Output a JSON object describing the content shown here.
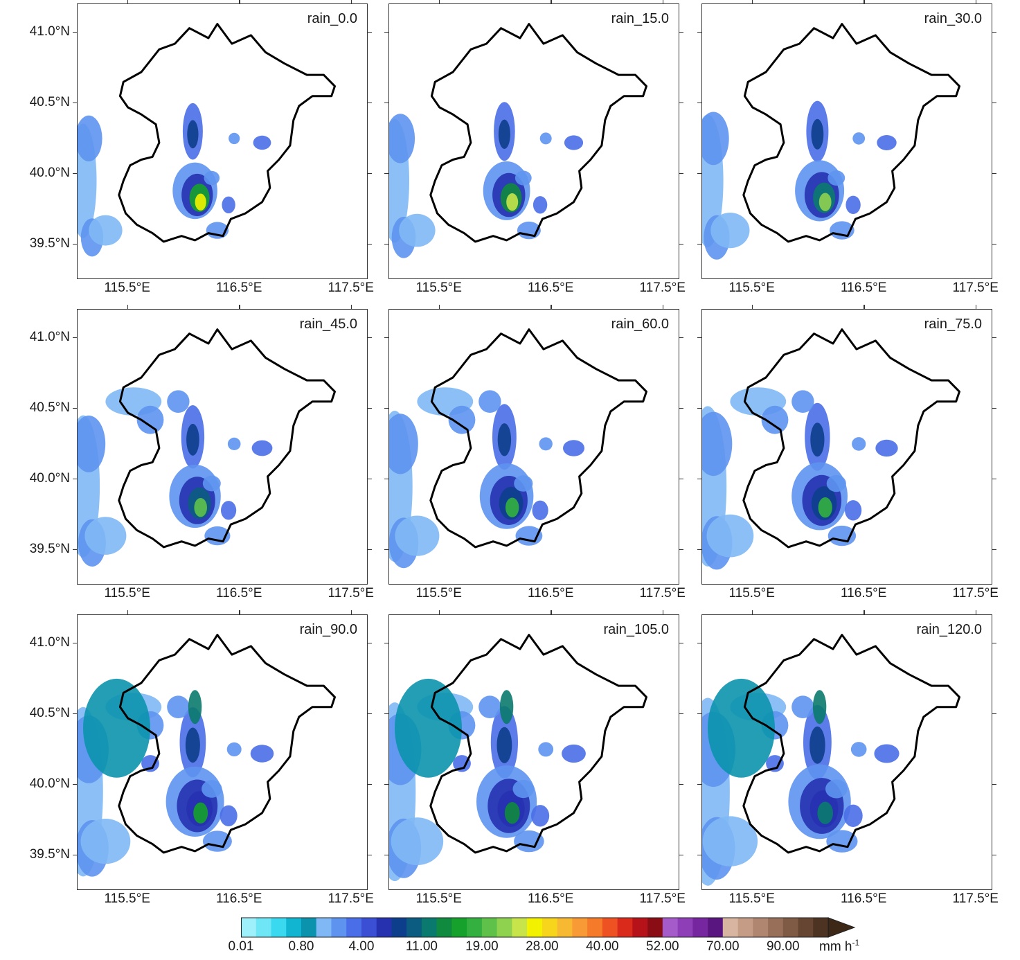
{
  "panels": [
    {
      "title": "rain_0.0"
    },
    {
      "title": "rain_15.0"
    },
    {
      "title": "rain_30.0"
    },
    {
      "title": "rain_45.0"
    },
    {
      "title": "rain_60.0"
    },
    {
      "title": "rain_75.0"
    },
    {
      "title": "rain_90.0"
    },
    {
      "title": "rain_105.0"
    },
    {
      "title": "rain_120.0"
    }
  ],
  "axes": {
    "lat_ticks": [
      "41.0°N",
      "40.5°N",
      "40.0°N",
      "39.5°N"
    ],
    "lon_ticks": [
      "115.5°E",
      "116.5°E",
      "117.5°E"
    ]
  },
  "colorbar": {
    "labels": [
      "0.01",
      "0.80",
      "4.00",
      "11.00",
      "19.00",
      "28.00",
      "40.00",
      "52.00",
      "70.00",
      "90.00"
    ],
    "unit": "mm h",
    "unit_exponent": "-1",
    "colors": [
      "#9ef0fa",
      "#6ee6f5",
      "#3ad9ef",
      "#12b5d1",
      "#0b93ad",
      "#7fb8f5",
      "#5e93f0",
      "#4a6ee8",
      "#3a4fd4",
      "#2631b0",
      "#0d3e8c",
      "#0b5c80",
      "#0b7a6e",
      "#0f8a3e",
      "#16a02c",
      "#33b040",
      "#5fc14a",
      "#8fd24f",
      "#c7e44a",
      "#f2f200",
      "#f7d51c",
      "#f8b932",
      "#f89a36",
      "#f57a2a",
      "#ef5222",
      "#d92a1c",
      "#b5121a",
      "#8a0c14",
      "#a55bc9",
      "#8e3fb8",
      "#76279f",
      "#5a1680",
      "#d8b5a0",
      "#c59d86",
      "#b08670",
      "#98705a",
      "#7f5a45",
      "#664533",
      "#4d3322"
    ]
  },
  "chart_data": {
    "type": "heatmap",
    "panels": [
      "rain_0.0",
      "rain_15.0",
      "rain_30.0",
      "rain_45.0",
      "rain_60.0",
      "rain_75.0",
      "rain_90.0",
      "rain_105.0",
      "rain_120.0"
    ],
    "lon_range": [
      115.05,
      117.65
    ],
    "lat_range": [
      39.25,
      41.2
    ],
    "x_ticks": [
      115.5,
      116.5,
      117.5
    ],
    "y_ticks": [
      41.0,
      40.5,
      40.0,
      39.5
    ],
    "levels": [
      0.01,
      0.8,
      4.0,
      11.0,
      19.0,
      28.0,
      40.0,
      52.0,
      70.0,
      90.0
    ],
    "unit": "mm h-1"
  }
}
